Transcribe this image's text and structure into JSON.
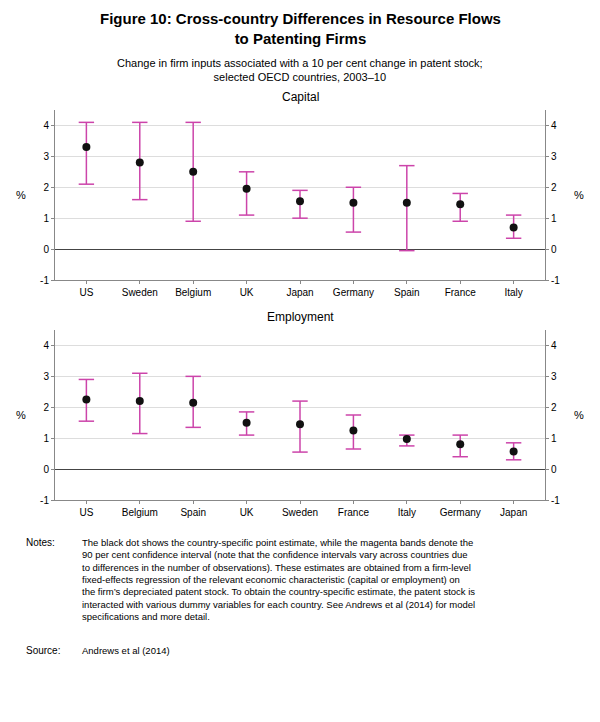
{
  "title": "Figure 10: Cross-country Differences in Resource Flows\nto Patenting Firms",
  "subtitle": "Change in firm inputs associated with a 10 per cent change in patent stock;\nselected OECD countries, 2003–10",
  "annotations": [
    "Notes:",
    "The black dot shows the country-specific point estimate, while the magenta bands denote the\n90 per cent confidence interval (note that the confidence intervals vary across countries due\nto differences in the number of observations). These estimates are obtained from a firm-level\nfixed-effects regression of the relevant economic characteristic (capital or employment) on\nthe firm’s depreciated patent stock. To obtain the country-specific estimate, the patent stock is\ninteracted with various dummy variables for each country. See Andrews et al (2014) for model\nspecifications and more detail.",
    "Source:",
    "Andrews et al (2014)"
  ],
  "chart_data": [
    {
      "type": "scatter",
      "title": "Capital",
      "categories": [
        "US",
        "Sweden",
        "Belgium",
        "UK",
        "Japan",
        "Germany",
        "Spain",
        "France",
        "Italy"
      ],
      "values": [
        3.3,
        2.8,
        2.5,
        1.95,
        1.55,
        1.5,
        1.5,
        1.45,
        0.7
      ],
      "ci_low": [
        2.1,
        1.6,
        0.9,
        1.1,
        1.0,
        0.55,
        -0.05,
        0.9,
        0.35
      ],
      "ci_high": [
        4.1,
        4.1,
        4.1,
        2.5,
        1.9,
        2.0,
        2.7,
        1.8,
        1.1
      ],
      "color": "#111111",
      "ci_color": "#cc44aa",
      "marker": "circle",
      "ylabel": "%",
      "y2label": "%",
      "ylim": [
        -1,
        4.5
      ],
      "yticks": [
        -1,
        0,
        1,
        2,
        3,
        4
      ],
      "y2lim": [
        -1,
        4.5
      ],
      "y2ticks": [
        -1,
        0,
        1,
        2,
        3,
        4
      ],
      "grid": true
    },
    {
      "type": "scatter",
      "title": "Employment",
      "categories": [
        "US",
        "Belgium",
        "Spain",
        "UK",
        "Sweden",
        "France",
        "Italy",
        "Germany",
        "Japan"
      ],
      "values": [
        2.25,
        2.2,
        2.15,
        1.5,
        1.45,
        1.25,
        0.97,
        0.8,
        0.57
      ],
      "ci_low": [
        1.55,
        1.15,
        1.35,
        1.1,
        0.55,
        0.65,
        0.75,
        0.4,
        0.3
      ],
      "ci_high": [
        2.9,
        3.1,
        3.0,
        1.85,
        2.2,
        1.75,
        1.1,
        1.1,
        0.85
      ],
      "color": "#111111",
      "ci_color": "#cc44aa",
      "marker": "circle",
      "ylabel": "%",
      "y2label": "%",
      "ylim": [
        -1,
        4.5
      ],
      "yticks": [
        -1,
        0,
        1,
        2,
        3,
        4
      ],
      "y2lim": [
        -1,
        4.5
      ],
      "y2ticks": [
        -1,
        0,
        1,
        2,
        3,
        4
      ],
      "grid": true
    }
  ]
}
